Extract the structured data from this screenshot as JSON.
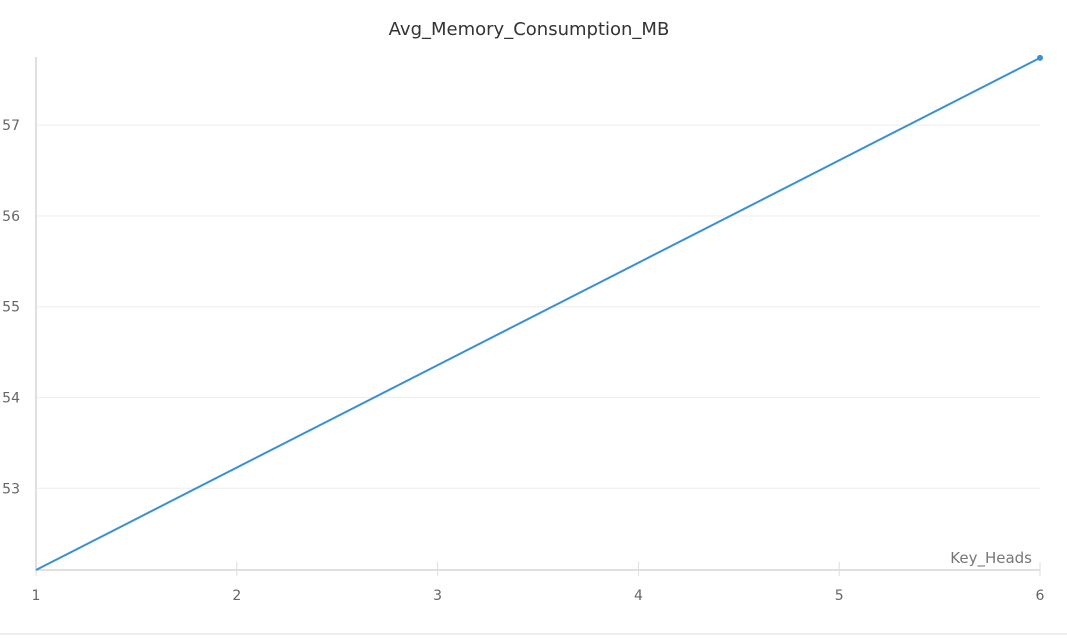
{
  "chart_data": {
    "type": "line",
    "title": "Avg_Memory_Consumption_MB",
    "xlabel": "Key_Heads",
    "ylabel": "",
    "x_ticks": [
      1,
      2,
      3,
      4,
      5,
      6
    ],
    "y_ticks": [
      53,
      54,
      55,
      56,
      57
    ],
    "xlim": [
      1,
      6
    ],
    "ylim": [
      52.1,
      57.75
    ],
    "grid": true,
    "series": [
      {
        "color": "#3b8fd4",
        "x": [
          1,
          6
        ],
        "y": [
          52.1,
          57.74
        ],
        "end_marker": true
      }
    ]
  }
}
